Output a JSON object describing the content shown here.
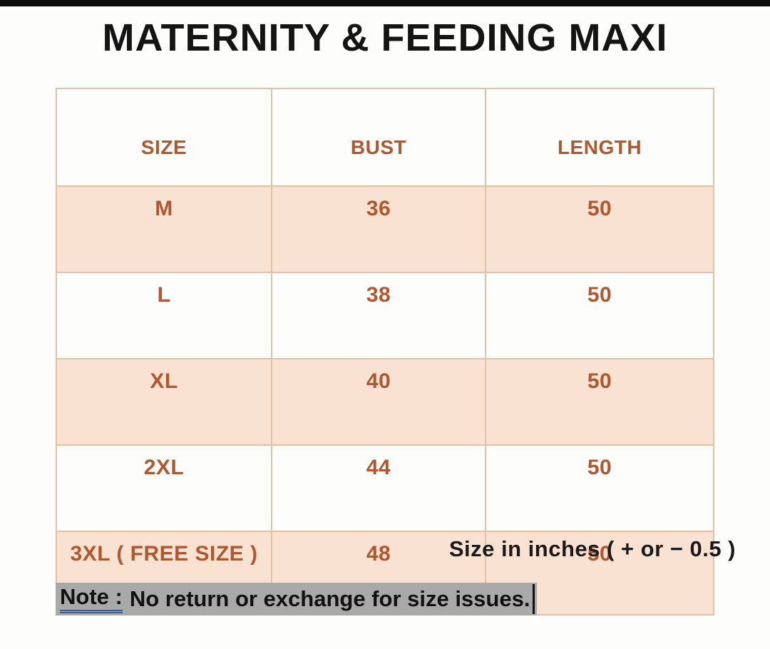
{
  "title": "MATERNITY & FEEDING MAXI",
  "table": {
    "headers": [
      "SIZE",
      "BUST",
      "LENGTH"
    ],
    "rows": [
      {
        "size": "M",
        "bust": "36",
        "length": "50"
      },
      {
        "size": "L",
        "bust": "38",
        "length": "50"
      },
      {
        "size": "XL",
        "bust": "40",
        "length": "50"
      },
      {
        "size": "2XL",
        "bust": "44",
        "length": "50"
      },
      {
        "size": "3XL ( FREE SIZE )",
        "bust": "48",
        "length": "50"
      }
    ]
  },
  "footnote": "Size in inches ( + or − 0.5 )",
  "note": {
    "label": "Note :",
    "text": "No return or exchange for size issues."
  },
  "colors": {
    "accent_text": "#b2562d",
    "row_shade": "#fae2d3",
    "table_border": "#e3c1a6",
    "note_highlight": "#a9a9a9",
    "note_underline": "#3c5d92",
    "top_bar": "#0c0c0c"
  },
  "chart_data": {
    "type": "table",
    "title": "MATERNITY & FEEDING MAXI",
    "columns": [
      "SIZE",
      "BUST",
      "LENGTH"
    ],
    "rows": [
      [
        "M",
        36,
        50
      ],
      [
        "L",
        38,
        50
      ],
      [
        "XL",
        40,
        50
      ],
      [
        "2XL",
        44,
        50
      ],
      [
        "3XL ( FREE SIZE )",
        48,
        50
      ]
    ],
    "units": "inches",
    "tolerance": "+ or − 0.5",
    "annotations": [
      "Size in inches ( + or − 0.5 )",
      "Note : No return or exchange for size issues."
    ]
  }
}
